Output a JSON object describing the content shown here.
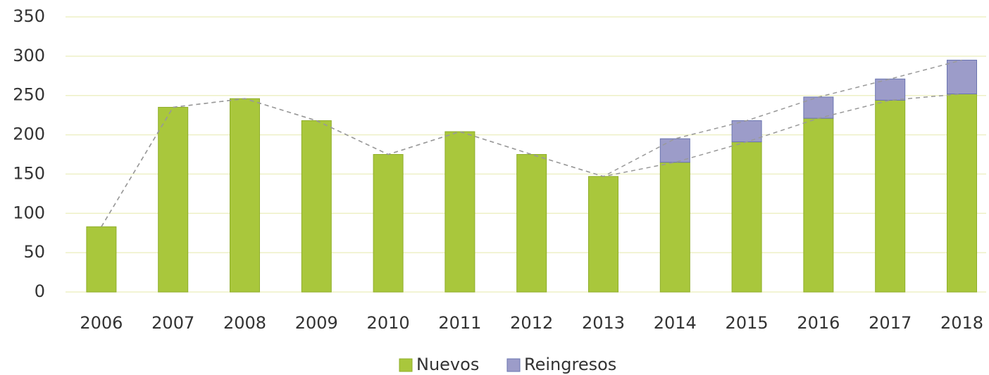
{
  "chart_data": {
    "type": "stacked_bar",
    "categories": [
      "2006",
      "2007",
      "2008",
      "2009",
      "2010",
      "2011",
      "2012",
      "2013",
      "2014",
      "2015",
      "2016",
      "2017",
      "2018"
    ],
    "series": [
      {
        "name": "Nuevos",
        "color": "#a9c73c",
        "values": [
          83,
          235,
          246,
          218,
          175,
          204,
          175,
          147,
          165,
          191,
          221,
          244,
          252
        ]
      },
      {
        "name": "Reingresos",
        "color": "#9c9cc9",
        "values": [
          0,
          0,
          0,
          0,
          0,
          0,
          0,
          0,
          30,
          27,
          27,
          27,
          43
        ]
      }
    ],
    "ylim": [
      0,
      350
    ],
    "yticks": [
      0,
      50,
      100,
      150,
      200,
      250,
      300,
      350
    ],
    "grid": true,
    "legend": "bottom"
  }
}
